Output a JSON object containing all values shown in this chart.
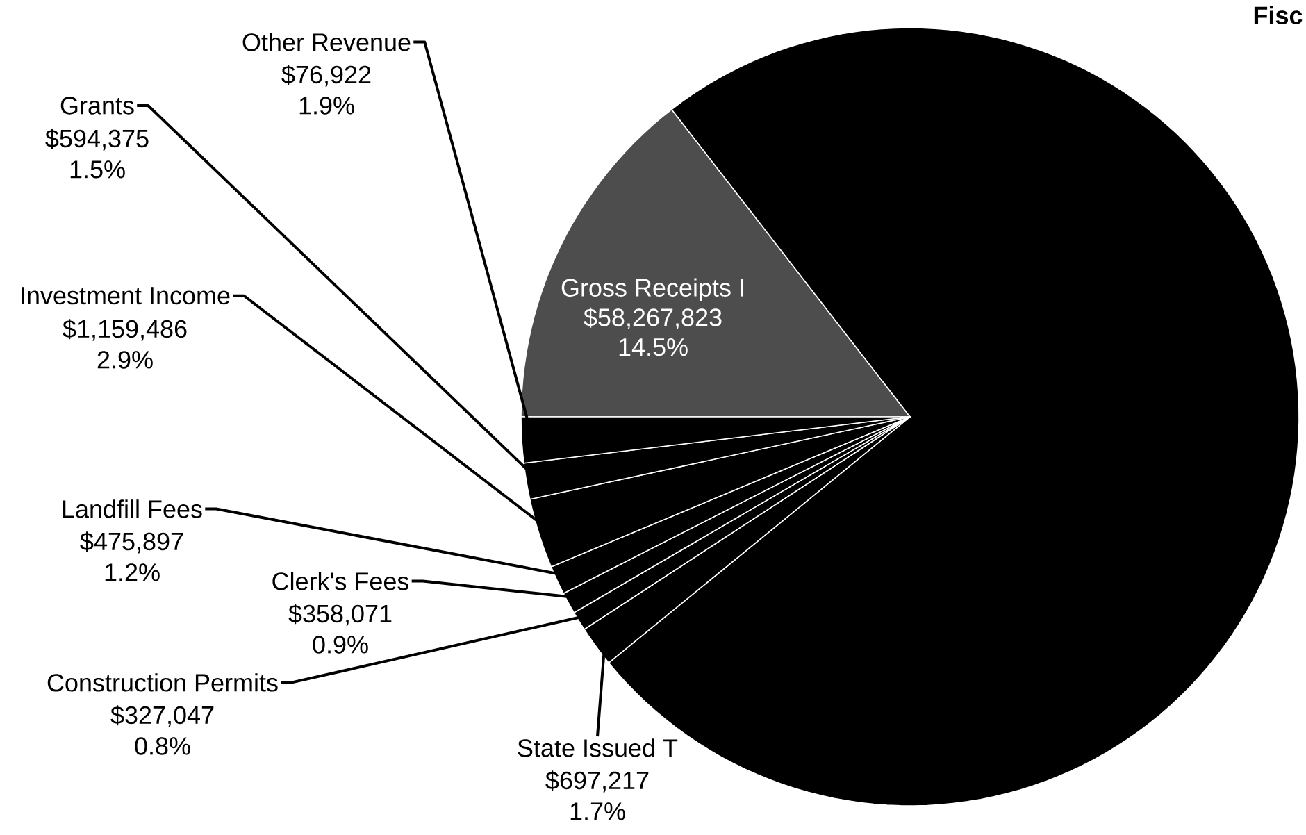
{
  "chart_data": {
    "type": "pie",
    "title": "Fisc",
    "categories": [
      "Gross Receipts I",
      null,
      "State Issued T",
      "Construction Permits",
      "Clerk's Fees",
      "Landfill Fees",
      "Investment Income",
      "Grants",
      "Other Revenue"
    ],
    "values": [
      14.5,
      74.6,
      1.7,
      0.8,
      0.9,
      1.2,
      2.9,
      1.5,
      1.9
    ],
    "value_labels": [
      [
        "$58,267,823",
        "14.5%"
      ],
      null,
      [
        "$697,217",
        "1.7%"
      ],
      [
        "$327,047",
        "0.8%"
      ],
      [
        "$358,071",
        "0.9%"
      ],
      [
        "$475,897",
        "1.2%"
      ],
      [
        "$1,159,486",
        "2.9%"
      ],
      [
        "$594,375",
        "1.5%"
      ],
      [
        "$76,922",
        "1.9%"
      ]
    ],
    "colors": [
      "#4d4d4d",
      "#000000",
      "#000000",
      "#000000",
      "#000000",
      "#000000",
      "#000000",
      "#000000",
      "#000000"
    ]
  }
}
